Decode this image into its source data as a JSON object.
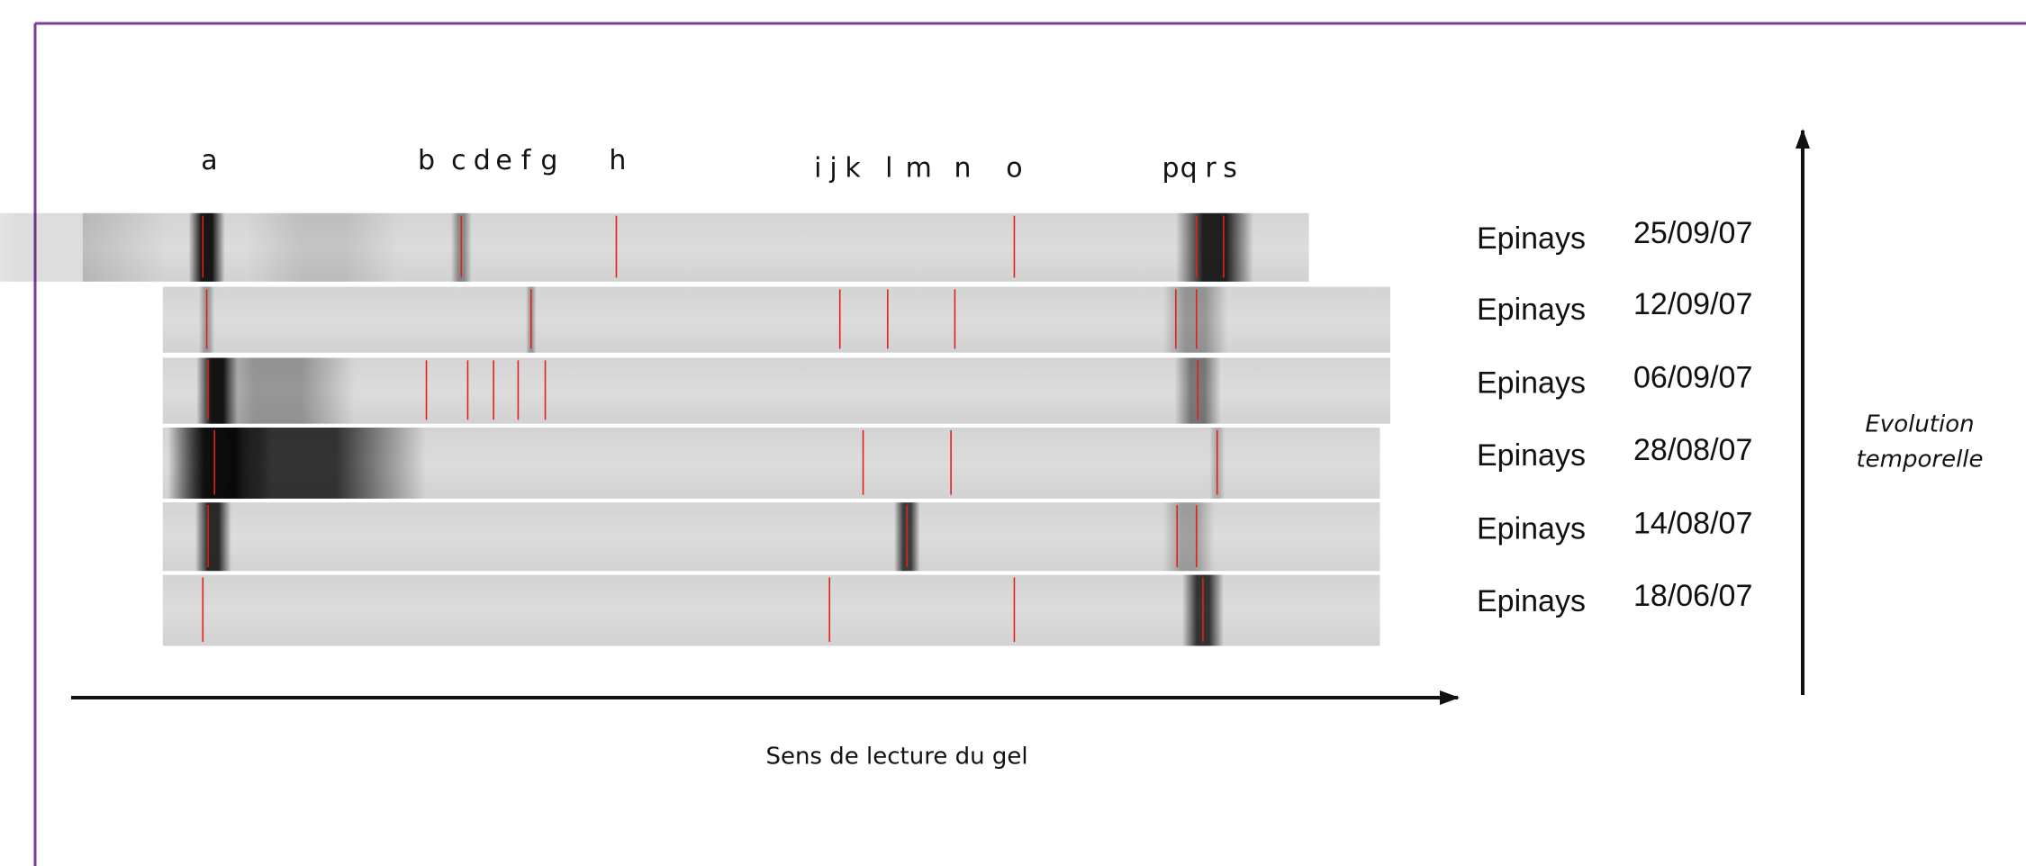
{
  "band_letters": [
    "a",
    "b",
    "c",
    "d",
    "e",
    "f",
    "g",
    "h",
    "i",
    "j",
    "k",
    "l",
    "m",
    "n",
    "o",
    "p",
    "q",
    "r",
    "s"
  ],
  "lanes": [
    {
      "site": "Epinays",
      "date": "25/09/07"
    },
    {
      "site": "Epinays",
      "date": "12/09/07"
    },
    {
      "site": "Epinays",
      "date": "06/09/07"
    },
    {
      "site": "Epinays",
      "date": "28/08/07"
    },
    {
      "site": "Epinays",
      "date": "14/08/07"
    },
    {
      "site": "Epinays",
      "date": "18/06/07"
    }
  ],
  "x_axis_label": "Sens de lecture du gel",
  "y_axis_label": [
    "Evolution",
    "temporelle"
  ]
}
